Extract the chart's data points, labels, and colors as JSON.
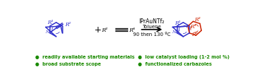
{
  "bg_color": "#ffffff",
  "blue_color": "#3333cc",
  "red_color": "#cc2200",
  "black_color": "#000000",
  "green_color": "#1a8a00",
  "bullet_points_left": [
    "●  readily available starting materials",
    "●  broad substrate scope"
  ],
  "bullet_points_right": [
    "●  low catalyst loading (1-2 mol %)",
    "●  functionalized carbazoles"
  ],
  "catalyst": "IPrAuNTf₂",
  "solvent": "Toluene",
  "temperature": "90 then 130 ºC"
}
